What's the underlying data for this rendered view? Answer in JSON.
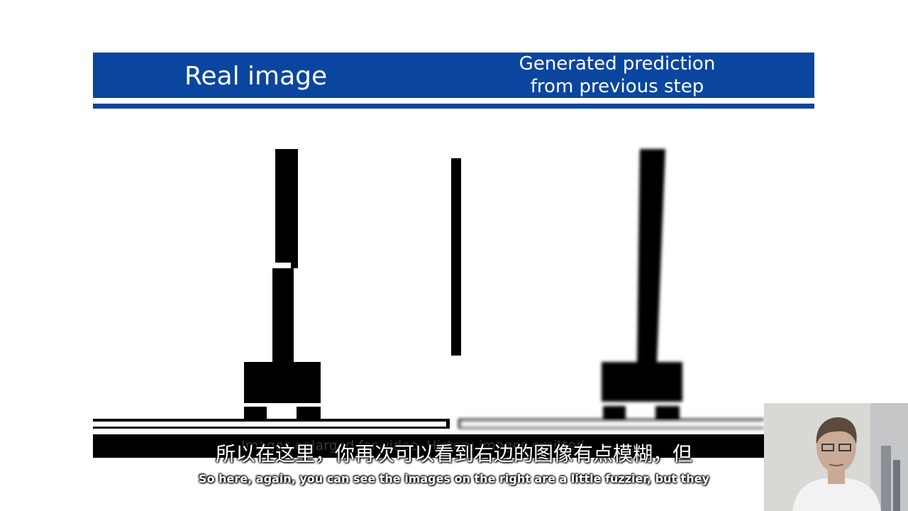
{
  "slide": {
    "title_left": "Real image",
    "title_right_line1": "Generated prediction",
    "title_right_line2": "from previous step",
    "caption": "Images enlarged for video. History images omitted.",
    "colors": {
      "header": "#0a46a0",
      "background": "#ffffff",
      "figure": "#000000"
    }
  },
  "subtitles": {
    "chinese": "所以在这里，你再次可以看到右边的图像有点模糊，但",
    "english": "So here, again, you can see the images on the right are a little fuzzier, but they"
  },
  "webcam": {
    "icon": "presenter-video-icon"
  }
}
